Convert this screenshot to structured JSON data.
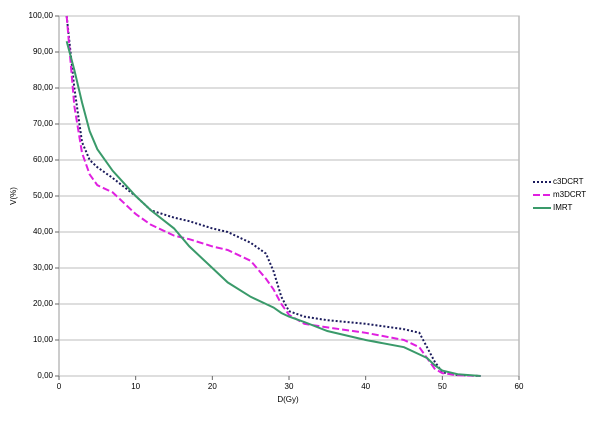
{
  "chart_data": {
    "type": "line",
    "x_label": "D(Gy)",
    "y_label": "V(%)",
    "x": [
      1,
      2,
      3,
      4,
      5,
      7,
      10,
      12,
      15,
      17,
      20,
      22,
      25,
      27,
      28,
      29,
      30,
      32,
      35,
      40,
      45,
      47,
      48,
      49,
      50,
      52,
      55
    ],
    "series": [
      {
        "name": "c3DCRT",
        "color": "#1b1b5c",
        "dash": "dotted",
        "values": [
          100,
          80,
          65,
          60,
          58,
          55,
          50,
          46,
          44,
          43,
          41,
          40,
          37,
          34,
          29,
          22,
          18,
          16.5,
          15.5,
          14.5,
          13,
          12,
          8,
          4,
          1,
          0.3,
          0
        ]
      },
      {
        "name": "m3DCRT",
        "color": "#e020e0",
        "dash": "dashed",
        "values": [
          100,
          75,
          62,
          56,
          53,
          51,
          45,
          42,
          39,
          38,
          36,
          35,
          32,
          27,
          24,
          20,
          17,
          14.5,
          13.5,
          12,
          10,
          8,
          5,
          2,
          0.8,
          0.2,
          0
        ]
      },
      {
        "name": "IMRT",
        "color": "#3a9a6a",
        "dash": "solid",
        "values": [
          93,
          85,
          76,
          68,
          63,
          57,
          50,
          46,
          41,
          36,
          30,
          26,
          22,
          20,
          19,
          17.5,
          16.5,
          15,
          12.5,
          10,
          8,
          6,
          5,
          3,
          1.5,
          0.5,
          0
        ]
      }
    ],
    "xlim": [
      0,
      60
    ],
    "xticks": [
      0,
      10,
      20,
      30,
      40,
      50,
      60
    ],
    "ylim": [
      0,
      100
    ],
    "yticks": [
      {
        "value": 0,
        "label": "0,00"
      },
      {
        "value": 10,
        "label": "10,00"
      },
      {
        "value": 20,
        "label": "20,00"
      },
      {
        "value": 30,
        "label": "30,00"
      },
      {
        "value": 40,
        "label": "40,00"
      },
      {
        "value": 50,
        "label": "50,00"
      },
      {
        "value": 60,
        "label": "60,00"
      },
      {
        "value": 70,
        "label": "70,00"
      },
      {
        "value": 80,
        "label": "80,00"
      },
      {
        "value": 90,
        "label": "90,00"
      },
      {
        "value": 100,
        "label": "100,00"
      }
    ],
    "grid": true,
    "legend": "right"
  }
}
